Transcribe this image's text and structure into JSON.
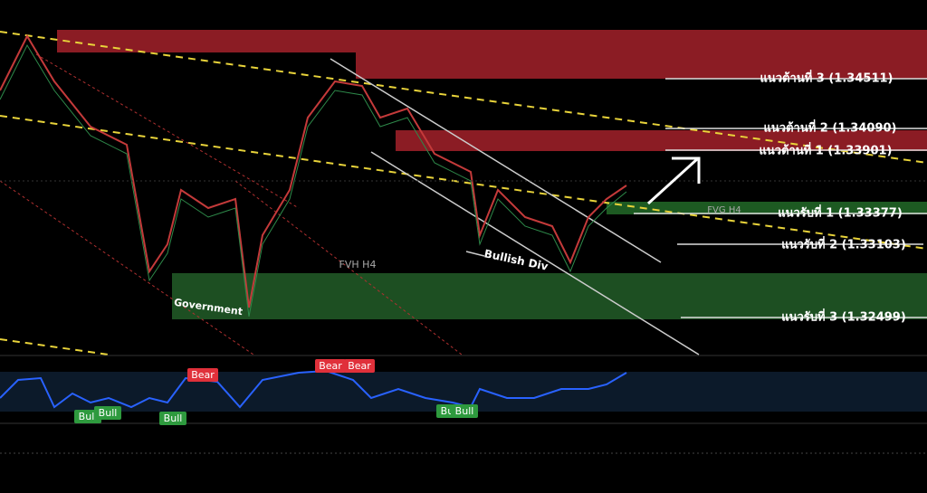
{
  "levels": [
    {
      "label": "แนวต้านที่ 3 (1.34511)"
    },
    {
      "label": "แนวต้านที่ 2 (1.34090)"
    },
    {
      "label": "แนวต้านที่ 1 (1.33901)"
    },
    {
      "label": "แนวรับที่ 1 (1.33377)"
    },
    {
      "label": "แนวรับที่ 2 (1.33103)"
    },
    {
      "label": "แนวรับที่ 3 (1.32499)"
    }
  ],
  "annotations": {
    "fvh": "FVH H4",
    "fvg": "FVG H4",
    "government": "Government",
    "bullish_div": "Bullish Div"
  },
  "badges": {
    "bear": [
      "Bear",
      "Bear",
      "Bear"
    ],
    "bull": [
      "Bull",
      "Bull",
      "Bull",
      "Bull",
      "Bull"
    ]
  }
}
